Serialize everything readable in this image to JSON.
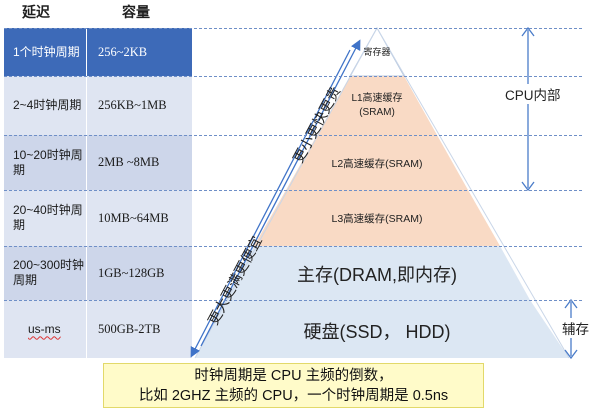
{
  "headers": {
    "latency": "延迟",
    "capacity": "容量"
  },
  "rows": [
    {
      "latency": "1个时钟周期",
      "capacity": "256~2KB"
    },
    {
      "latency": "2~4时钟周期",
      "capacity": "256KB~1MB"
    },
    {
      "latency": "10~20时钟周期",
      "capacity": "2MB ~8MB"
    },
    {
      "latency": "20~40时钟周期",
      "capacity": "10MB~64MB"
    },
    {
      "latency": "200~300时钟周期",
      "capacity": "1GB~128GB"
    },
    {
      "latency": "us-ms",
      "capacity": "500GB-2TB"
    }
  ],
  "pyramid": {
    "register": "寄存器",
    "l1": {
      "name": "L1高速缓存",
      "sub": "(SRAM)"
    },
    "l2": "L2高速缓存(SRAM)",
    "l3": "L3高速缓存(SRAM)",
    "main_memory": "主存(DRAM,即内存)",
    "disk": "硬盘(SSD， HDD)"
  },
  "arrows": {
    "up": "更小更快更贵",
    "down": "更大更满更便宜"
  },
  "brackets": {
    "cpu": "CPU内部",
    "aux": "辅存"
  },
  "note": {
    "line1": "时钟周期是 CPU 主频的倒数，",
    "line2": "比如 2GHZ 主频的 CPU，一个时钟周期是 0.5ns"
  },
  "colors": {
    "highlight_row": "#3d6ab8",
    "row_light": "#dfe5f2",
    "cache_fill": "#f9dac5",
    "memory_fill": "#dce7f3",
    "arrow": "#3f73c8",
    "note_bg": "#fffbc9"
  }
}
